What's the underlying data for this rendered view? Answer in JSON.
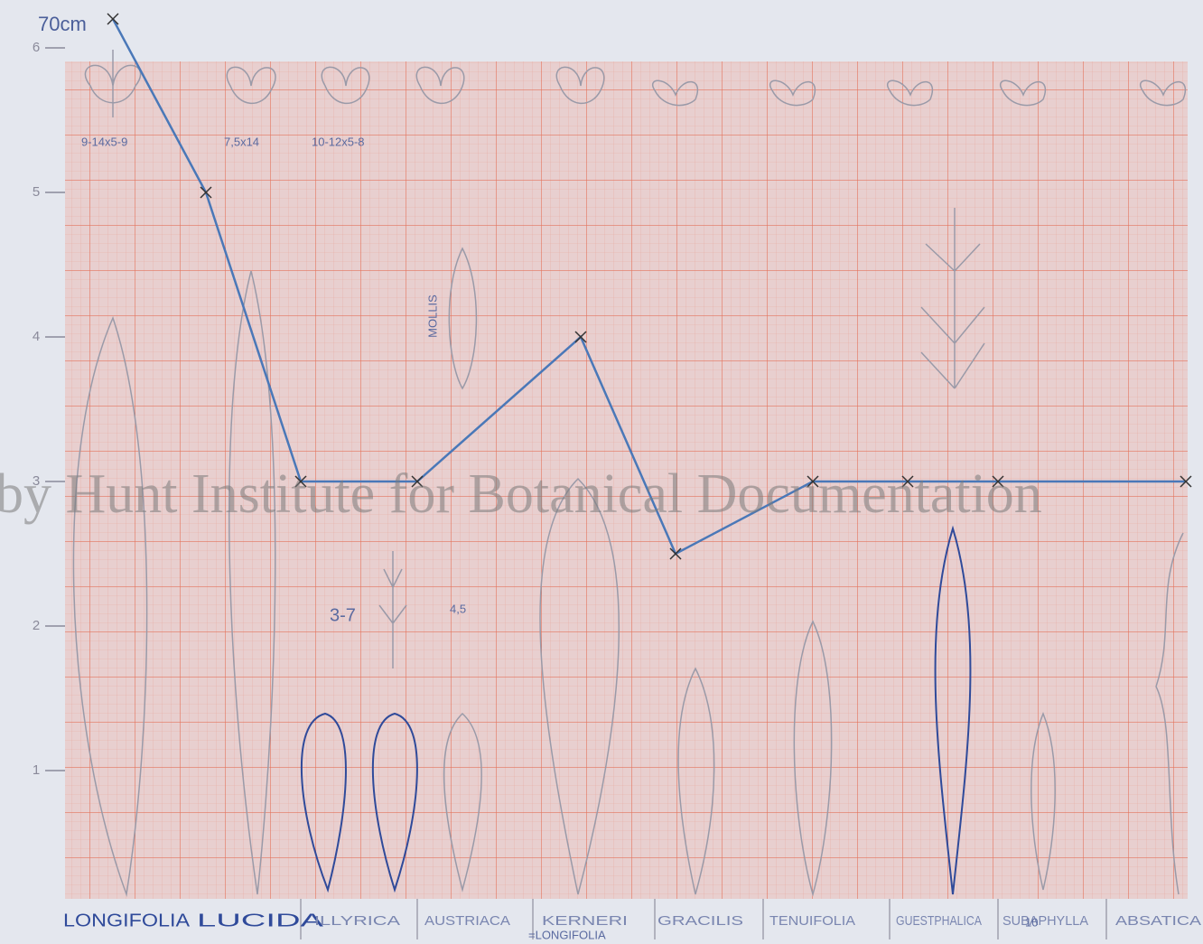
{
  "chart_data": {
    "type": "line",
    "axis_note": "70cm",
    "categories": [
      "LONGIFOLIA",
      "LUCIDA",
      "ILLYRICA",
      "AUSTRIACA",
      "KERNERI",
      "GRACILIS",
      "TENUIFOLIA",
      "GUESTPHALICA",
      "SUBAPHYLLA",
      "ABSATICA"
    ],
    "series": [
      {
        "color": "#4a78b8",
        "values": [
          6.2,
          5,
          3,
          3,
          4,
          2.5,
          3,
          3,
          3,
          3
        ]
      }
    ],
    "ylim": [
      0,
      6.3
    ],
    "yticks": [
      1,
      2,
      3,
      4,
      5,
      6
    ],
    "annotations": [
      "9-14x5-9",
      "7,5x14",
      "10-12x5-8",
      "MOLLIS",
      "3-7",
      "4,5",
      "=LONGIFOLIA",
      "10"
    ],
    "watermark": "by Hunt Institute for Botanical Documentation"
  }
}
